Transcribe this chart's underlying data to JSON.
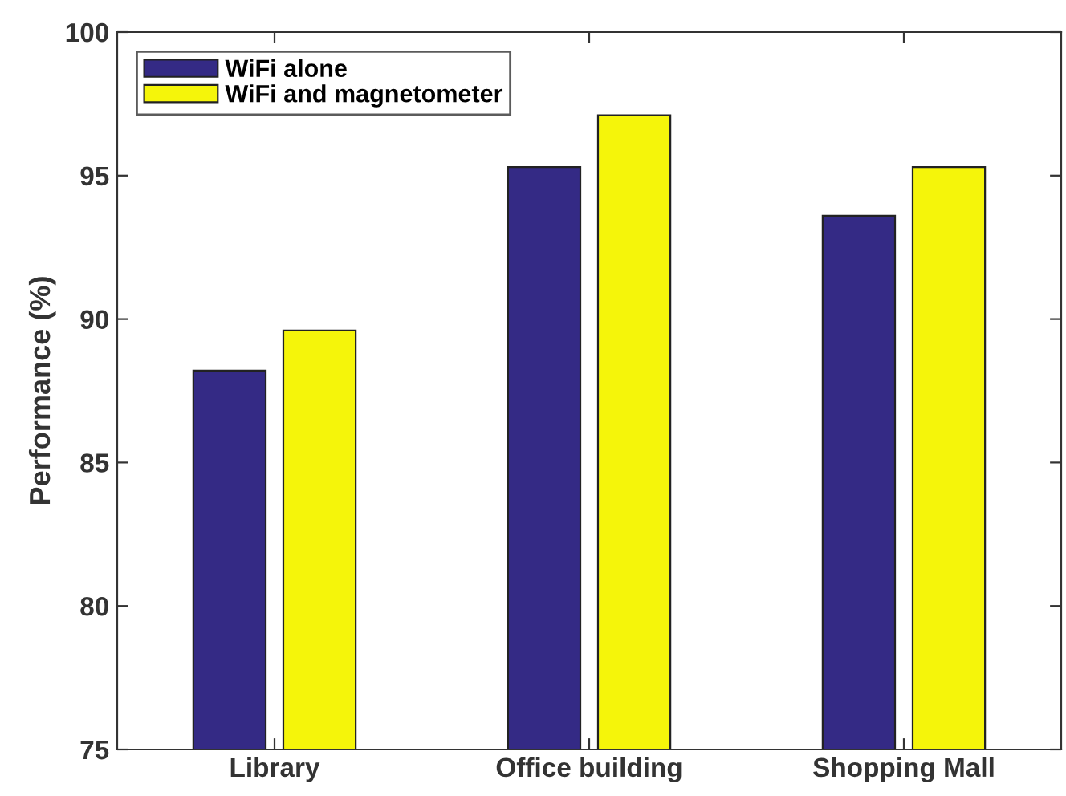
{
  "chart_data": {
    "type": "bar",
    "ylabel": "Performance (%)",
    "categories": [
      "Library",
      "Office building",
      "Shopping Mall"
    ],
    "series": [
      {
        "name": "WiFi alone",
        "color": "#342a85",
        "values": [
          88.2,
          95.3,
          93.6
        ]
      },
      {
        "name": "WiFi and magnetometer",
        "color": "#f5f50a",
        "values": [
          89.6,
          97.1,
          95.3
        ]
      }
    ],
    "ylim": [
      75,
      100
    ],
    "yticks": [
      75,
      80,
      85,
      90,
      95,
      100
    ],
    "grid": false,
    "legend": "top left"
  }
}
